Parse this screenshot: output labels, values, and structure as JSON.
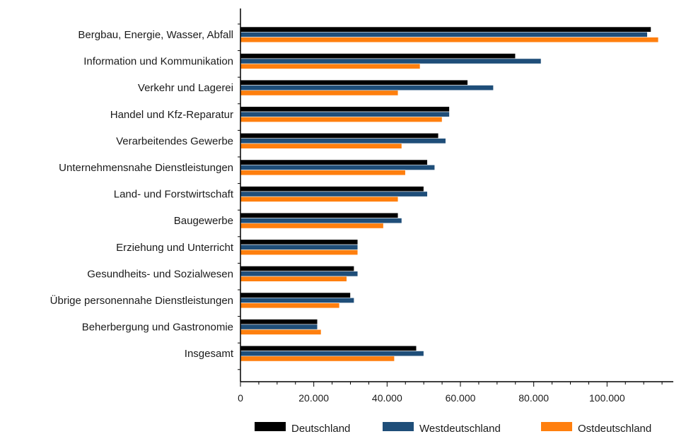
{
  "chart_data": {
    "type": "bar",
    "orientation": "horizontal",
    "categories": [
      "Bergbau, Energie, Wasser, Abfall",
      "Information und Kommunikation",
      "Verkehr und Lagerei",
      "Handel und Kfz-Reparatur",
      "Verarbeitendes Gewerbe",
      "Unternehmensnahe Dienstleistungen",
      "Land- und Forstwirtschaft",
      "Baugewerbe",
      "Erziehung und Unterricht",
      "Gesundheits- und Sozialwesen",
      "Übrige personennahe Dienstleistungen",
      "Beherbergung und Gastronomie",
      "Insgesamt"
    ],
    "series": [
      {
        "name": "Deutschland",
        "color": "#000000",
        "values": [
          112000,
          75000,
          62000,
          57000,
          54000,
          51000,
          50000,
          43000,
          32000,
          31000,
          30000,
          21000,
          48000
        ]
      },
      {
        "name": "Westdeutschland",
        "color": "#1f4e79",
        "values": [
          111000,
          82000,
          69000,
          57000,
          56000,
          53000,
          51000,
          44000,
          32000,
          32000,
          31000,
          21000,
          50000
        ]
      },
      {
        "name": "Ostdeutschland",
        "color": "#ff7f0e",
        "values": [
          114000,
          49000,
          43000,
          55000,
          44000,
          45000,
          43000,
          39000,
          32000,
          29000,
          27000,
          22000,
          42000
        ]
      }
    ],
    "xlim": [
      0,
      120000
    ],
    "xticks": [
      0,
      20000,
      40000,
      60000,
      80000,
      100000
    ],
    "xtick_labels": [
      "0",
      "20.000",
      "40.000",
      "60.000",
      "80.000",
      "100.000"
    ],
    "title": "",
    "xlabel": "",
    "ylabel": "",
    "grid": false,
    "legend_position": "bottom"
  }
}
